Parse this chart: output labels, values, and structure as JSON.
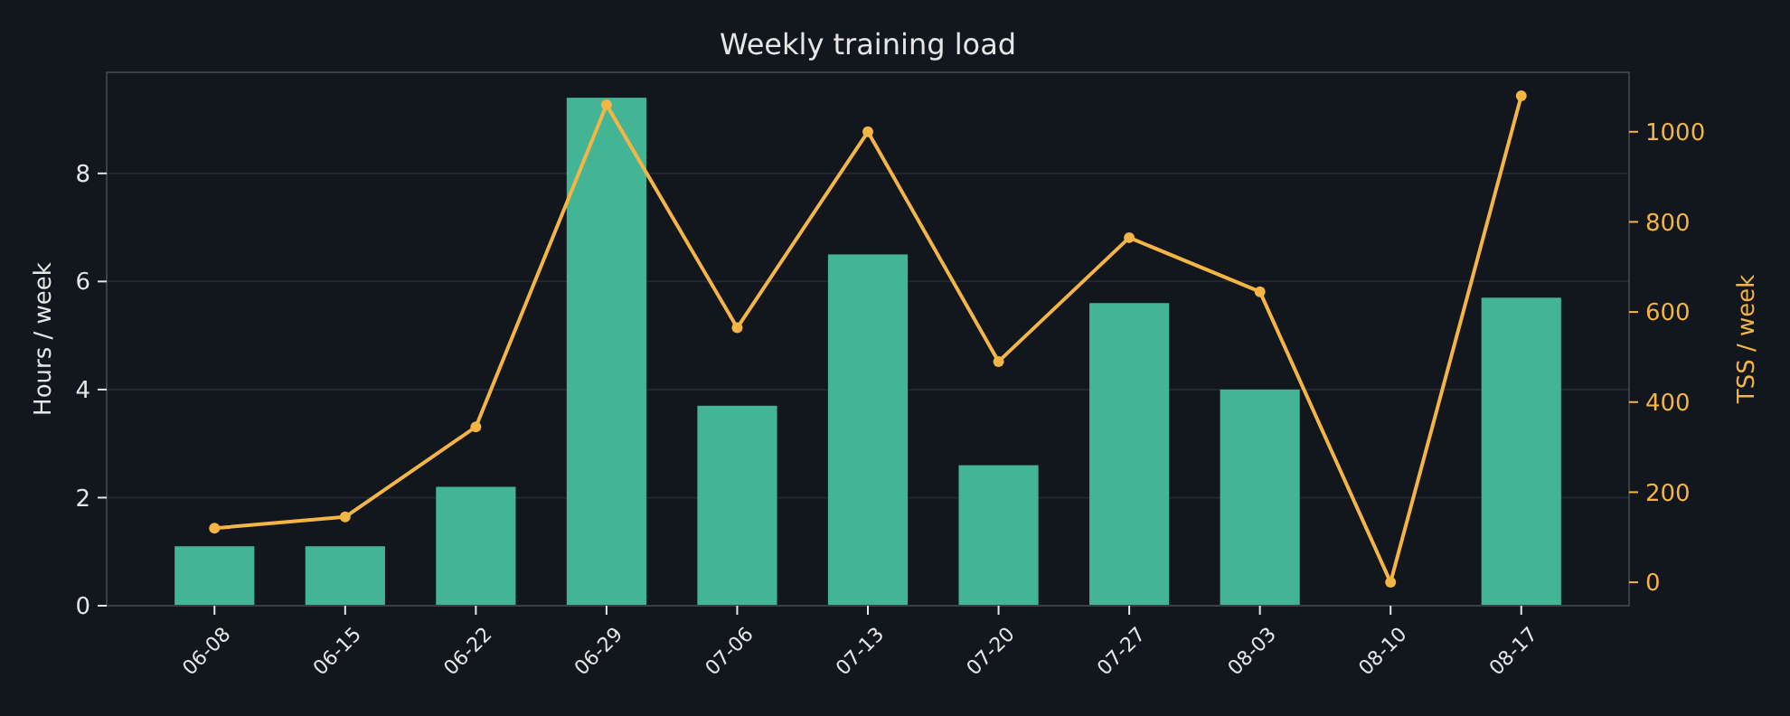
{
  "chart_data": {
    "type": "bar",
    "title": "Weekly training load",
    "ylabel": "Hours / week",
    "y2label": "TSS / week",
    "categories": [
      "06-08",
      "06-15",
      "06-22",
      "06-29",
      "07-06",
      "07-13",
      "07-20",
      "07-27",
      "08-03",
      "08-10",
      "08-17"
    ],
    "series": [
      {
        "color": "#44b594",
        "values": [
          1.1,
          1.1,
          2.2,
          9.4,
          3.7,
          6.5,
          2.6,
          5.6,
          4.0,
          0,
          5.7
        ]
      },
      {
        "type": "line",
        "axis": "y2",
        "color": "#f5b544",
        "values": [
          120,
          145,
          345,
          1060,
          565,
          1000,
          490,
          765,
          645,
          0,
          1080
        ]
      }
    ],
    "ylim": [
      0,
      9.87
    ],
    "yticks": [
      0,
      2,
      4,
      6,
      8
    ],
    "y2lim": [
      -52,
      1132
    ],
    "y2ticks": [
      0,
      200,
      400,
      600,
      800,
      1000
    ],
    "grid": "y",
    "marker": "circle",
    "line_style": "solid"
  }
}
